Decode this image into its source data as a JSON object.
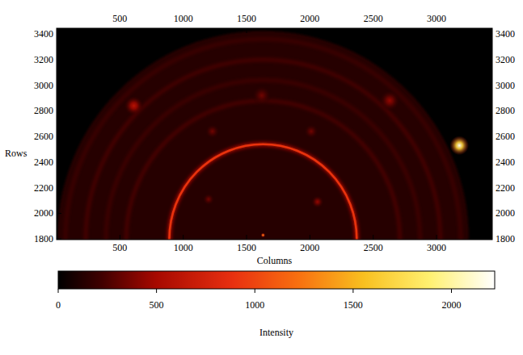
{
  "chart_data": {
    "type": "diffraction",
    "xlabel": "Columns",
    "ylabel": "Rows",
    "colorbar_label": "Intensity",
    "xlim": [
      0,
      3440
    ],
    "xticks": [
      500,
      1000,
      1500,
      2000,
      2500,
      3000
    ],
    "ylim": [
      1795,
      3445
    ],
    "yticks": [
      1800,
      2000,
      2200,
      2400,
      2600,
      2800,
      3000,
      3200,
      3400
    ],
    "colorbar_lim": [
      0,
      2220
    ],
    "colorbar_ticks": [
      0,
      500,
      1000,
      1500,
      2000
    ],
    "detector": {
      "x": 1630,
      "y": 1800,
      "radius": 1625,
      "intensity": 140
    },
    "rings": {
      "radius": [
        740,
        1080,
        1240,
        1400,
        1560
      ],
      "intensity": [
        900,
        260,
        230,
        250,
        220
      ]
    },
    "spots": {
      "x": [
        610,
        1620,
        2630,
        1230,
        2010,
        1200,
        2060,
        3180,
        1630
      ],
      "y": [
        2840,
        2920,
        2880,
        2640,
        2640,
        2110,
        2090,
        2530,
        1830
      ],
      "intensity": [
        600,
        350,
        450,
        350,
        350,
        350,
        450,
        2200,
        1400
      ],
      "size": [
        75,
        80,
        80,
        60,
        60,
        50,
        50,
        75,
        18
      ]
    }
  }
}
